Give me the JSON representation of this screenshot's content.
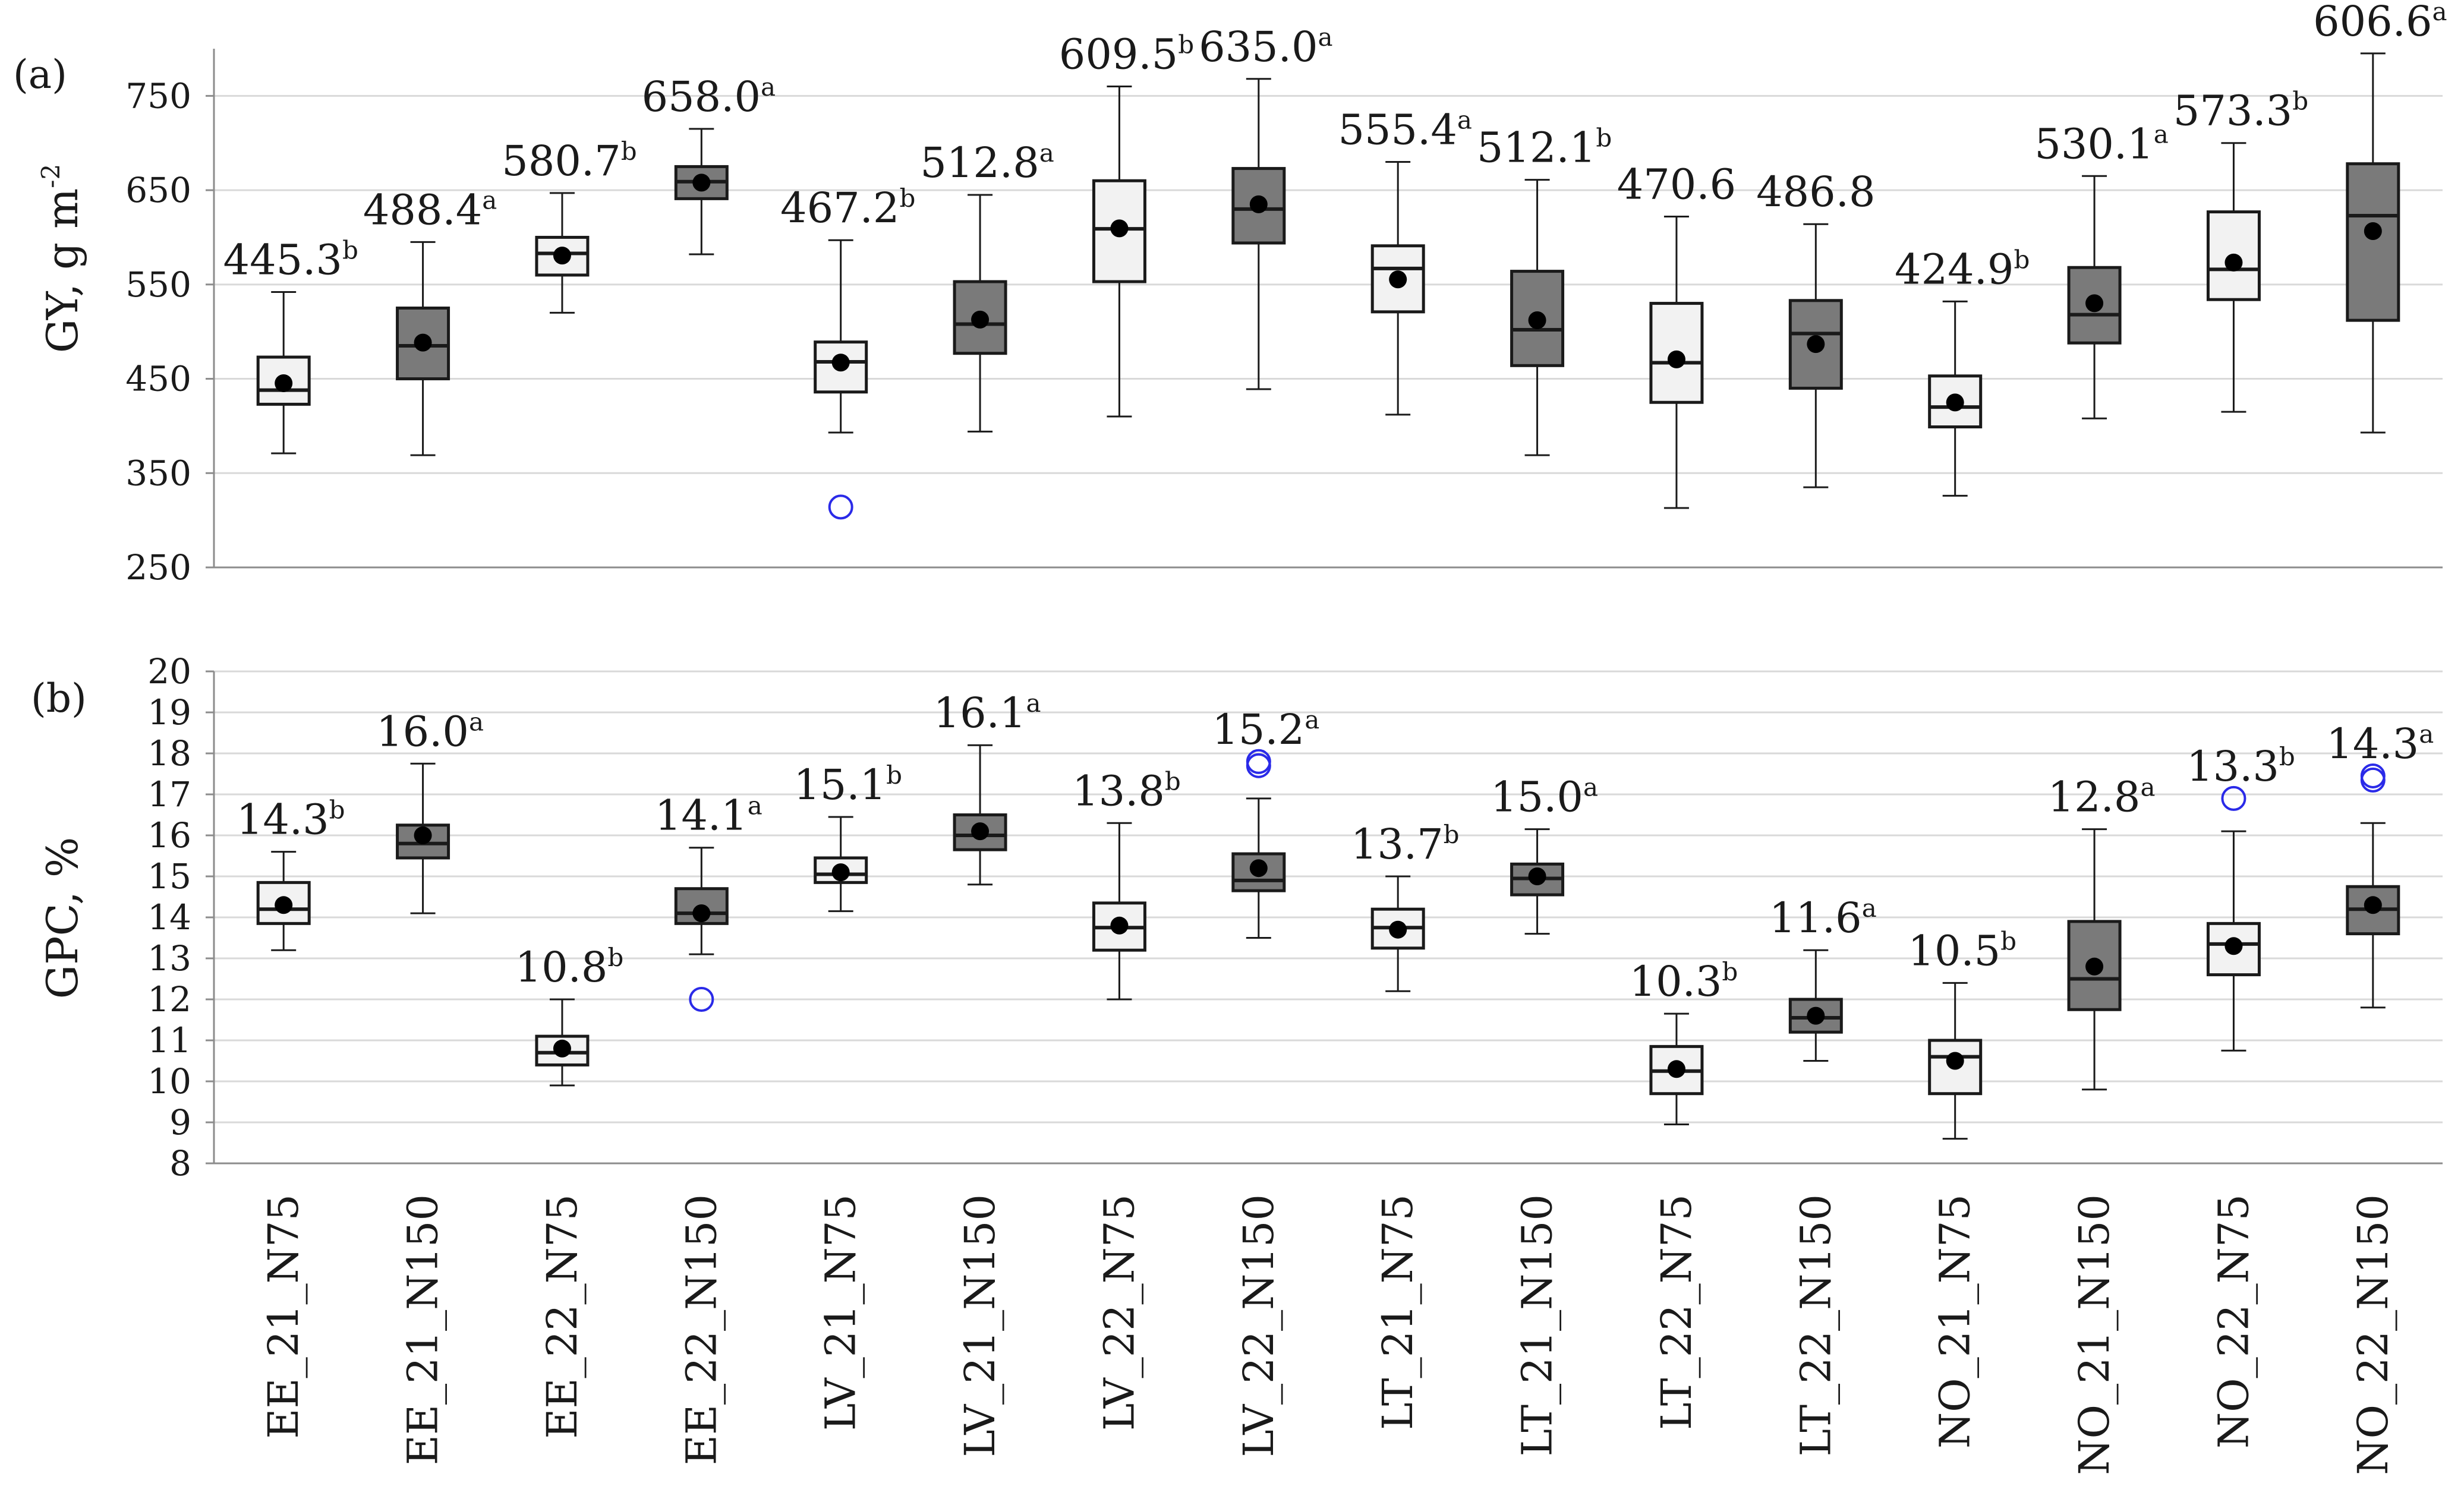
{
  "chart_data": [
    {
      "type": "box",
      "panel_label": "(a)",
      "ylabel": "GY, g m",
      "ylabel_sup": "-2",
      "ylim": [
        250,
        800
      ],
      "yticks": [
        250,
        350,
        450,
        550,
        650,
        750
      ],
      "grid": true,
      "categories": [
        "EE_21_N75",
        "EE_21_N150",
        "EE_22_N75",
        "EE_22_N150",
        "LV_21_N75",
        "LV_21_N150",
        "LV_22_N75",
        "LV_22_N150",
        "LT_21_N75",
        "LT_21_N150",
        "LT_22_N75",
        "LT_22_N150",
        "NO_21_N75",
        "NO_21_N150",
        "NO_22_N75",
        "NO_22_N150"
      ],
      "fill": [
        "light",
        "dark",
        "light",
        "dark",
        "light",
        "dark",
        "light",
        "dark",
        "light",
        "dark",
        "light",
        "dark",
        "light",
        "dark",
        "light",
        "dark"
      ],
      "boxes": [
        {
          "min": 371,
          "q1": 423,
          "median": 438,
          "q3": 473,
          "max": 542,
          "mean": 445.3,
          "mean_label": "445.3",
          "letter": "b",
          "outliers": []
        },
        {
          "min": 369,
          "q1": 450,
          "median": 485,
          "q3": 525,
          "max": 595,
          "mean": 488.4,
          "mean_label": "488.4",
          "letter": "a",
          "outliers": []
        },
        {
          "min": 520,
          "q1": 560,
          "median": 583,
          "q3": 600,
          "max": 647,
          "mean": 580.7,
          "mean_label": "580.7",
          "letter": "b",
          "outliers": []
        },
        {
          "min": 582,
          "q1": 641,
          "median": 659,
          "q3": 675,
          "max": 715,
          "mean": 658.0,
          "mean_label": "658.0",
          "letter": "a",
          "outliers": []
        },
        {
          "min": 393,
          "q1": 436,
          "median": 468,
          "q3": 489,
          "max": 597,
          "mean": 467.2,
          "mean_label": "467.2",
          "letter": "b",
          "outliers": [
            314
          ]
        },
        {
          "min": 394,
          "q1": 477,
          "median": 508,
          "q3": 553,
          "max": 645,
          "mean": 512.8,
          "mean_label": "512.8",
          "letter": "a",
          "outliers": []
        },
        {
          "min": 410,
          "q1": 553,
          "median": 609,
          "q3": 660,
          "max": 760,
          "mean": 609.5,
          "mean_label": "609.5",
          "letter": "b",
          "outliers": []
        },
        {
          "min": 439,
          "q1": 594,
          "median": 630,
          "q3": 673,
          "max": 768,
          "mean": 635.0,
          "mean_label": "635.0",
          "letter": "a",
          "outliers": []
        },
        {
          "min": 412,
          "q1": 521,
          "median": 567,
          "q3": 591,
          "max": 680,
          "mean": 555.4,
          "mean_label": "555.4",
          "letter": "a",
          "outliers": []
        },
        {
          "min": 369,
          "q1": 464,
          "median": 502,
          "q3": 564,
          "max": 661,
          "mean": 512.1,
          "mean_label": "512.1",
          "letter": "b",
          "outliers": []
        },
        {
          "min": 313,
          "q1": 425,
          "median": 467,
          "q3": 530,
          "max": 622,
          "mean": 470.6,
          "mean_label": "470.6",
          "letter": "",
          "outliers": []
        },
        {
          "min": 335,
          "q1": 440,
          "median": 498,
          "q3": 533,
          "max": 614,
          "mean": 486.8,
          "mean_label": "486.8",
          "letter": "",
          "outliers": []
        },
        {
          "min": 326,
          "q1": 399,
          "median": 420,
          "q3": 453,
          "max": 532,
          "mean": 424.9,
          "mean_label": "424.9",
          "letter": "b",
          "outliers": []
        },
        {
          "min": 408,
          "q1": 488,
          "median": 518,
          "q3": 568,
          "max": 665,
          "mean": 530.1,
          "mean_label": "530.1",
          "letter": "a",
          "outliers": []
        },
        {
          "min": 415,
          "q1": 534,
          "median": 566,
          "q3": 627,
          "max": 700,
          "mean": 573.3,
          "mean_label": "573.3",
          "letter": "b",
          "outliers": []
        },
        {
          "min": 393,
          "q1": 512,
          "median": 623,
          "q3": 678,
          "max": 795,
          "mean": 606.6,
          "mean_label": "606.6",
          "letter": "a",
          "outliers": []
        }
      ]
    },
    {
      "type": "box",
      "panel_label": "(b)",
      "ylabel": "GPC, %",
      "ylim": [
        8,
        20
      ],
      "yticks": [
        8,
        9,
        10,
        11,
        12,
        13,
        14,
        15,
        16,
        17,
        18,
        19,
        20
      ],
      "grid": true,
      "categories": [
        "EE_21_N75",
        "EE_21_N150",
        "EE_22_N75",
        "EE_22_N150",
        "LV_21_N75",
        "LV_21_N150",
        "LV_22_N75",
        "LV_22_N150",
        "LT_21_N75",
        "LT_21_N150",
        "LT_22_N75",
        "LT_22_N150",
        "NO_21_N75",
        "NO_21_N150",
        "NO_22_N75",
        "NO_22_N150"
      ],
      "fill": [
        "light",
        "dark",
        "light",
        "dark",
        "light",
        "dark",
        "light",
        "dark",
        "light",
        "dark",
        "light",
        "dark",
        "light",
        "dark",
        "light",
        "dark"
      ],
      "boxes": [
        {
          "min": 13.2,
          "q1": 13.85,
          "median": 14.2,
          "q3": 14.85,
          "max": 15.6,
          "mean": 14.3,
          "mean_label": "14.3",
          "letter": "b",
          "outliers": []
        },
        {
          "min": 14.1,
          "q1": 15.45,
          "median": 15.8,
          "q3": 16.25,
          "max": 17.75,
          "mean": 16.0,
          "mean_label": "16.0",
          "letter": "a",
          "outliers": []
        },
        {
          "min": 9.9,
          "q1": 10.4,
          "median": 10.7,
          "q3": 11.1,
          "max": 12.0,
          "mean": 10.8,
          "mean_label": "10.8",
          "letter": "b",
          "outliers": []
        },
        {
          "min": 13.1,
          "q1": 13.85,
          "median": 14.1,
          "q3": 14.7,
          "max": 15.7,
          "mean": 14.1,
          "mean_label": "14.1",
          "letter": "a",
          "outliers": [
            12.0
          ]
        },
        {
          "min": 14.15,
          "q1": 14.85,
          "median": 15.05,
          "q3": 15.45,
          "max": 16.45,
          "mean": 15.1,
          "mean_label": "15.1",
          "letter": "b",
          "outliers": []
        },
        {
          "min": 14.8,
          "q1": 15.65,
          "median": 16.0,
          "q3": 16.5,
          "max": 18.2,
          "mean": 16.1,
          "mean_label": "16.1",
          "letter": "a",
          "outliers": []
        },
        {
          "min": 12.0,
          "q1": 13.2,
          "median": 13.75,
          "q3": 14.35,
          "max": 16.3,
          "mean": 13.8,
          "mean_label": "13.8",
          "letter": "b",
          "outliers": []
        },
        {
          "min": 13.5,
          "q1": 14.65,
          "median": 14.9,
          "q3": 15.55,
          "max": 16.9,
          "mean": 15.2,
          "mean_label": "15.2",
          "letter": "a",
          "outliers": [
            17.7,
            17.8
          ]
        },
        {
          "min": 12.2,
          "q1": 13.25,
          "median": 13.75,
          "q3": 14.2,
          "max": 15.0,
          "mean": 13.7,
          "mean_label": "13.7",
          "letter": "b",
          "outliers": []
        },
        {
          "min": 13.6,
          "q1": 14.55,
          "median": 14.95,
          "q3": 15.3,
          "max": 16.15,
          "mean": 15.0,
          "mean_label": "15.0",
          "letter": "a",
          "outliers": []
        },
        {
          "min": 8.95,
          "q1": 9.7,
          "median": 10.25,
          "q3": 10.85,
          "max": 11.65,
          "mean": 10.3,
          "mean_label": "10.3",
          "letter": "b",
          "outliers": []
        },
        {
          "min": 10.5,
          "q1": 11.2,
          "median": 11.55,
          "q3": 12.0,
          "max": 13.2,
          "mean": 11.6,
          "mean_label": "11.6",
          "letter": "a",
          "outliers": []
        },
        {
          "min": 8.6,
          "q1": 9.7,
          "median": 10.6,
          "q3": 11.0,
          "max": 12.4,
          "mean": 10.5,
          "mean_label": "10.5",
          "letter": "b",
          "outliers": []
        },
        {
          "min": 9.8,
          "q1": 11.75,
          "median": 12.5,
          "q3": 13.9,
          "max": 16.15,
          "mean": 12.8,
          "mean_label": "12.8",
          "letter": "a",
          "outliers": []
        },
        {
          "min": 10.75,
          "q1": 12.6,
          "median": 13.35,
          "q3": 13.85,
          "max": 16.1,
          "mean": 13.3,
          "mean_label": "13.3",
          "letter": "b",
          "outliers": [
            16.9
          ]
        },
        {
          "min": 11.8,
          "q1": 13.6,
          "median": 14.2,
          "q3": 14.75,
          "max": 16.3,
          "mean": 14.3,
          "mean_label": "14.3",
          "letter": "a",
          "outliers": [
            17.35,
            17.45
          ]
        }
      ]
    }
  ],
  "colors": {
    "light_box": "#f2f2f2",
    "dark_box": "#7a7a7a",
    "outline": "#1a1a1a",
    "grid": "#d9d9d9",
    "axis": "#8c8c8c",
    "outlier": "#2a2ae8",
    "mean_dot": "#000000"
  }
}
